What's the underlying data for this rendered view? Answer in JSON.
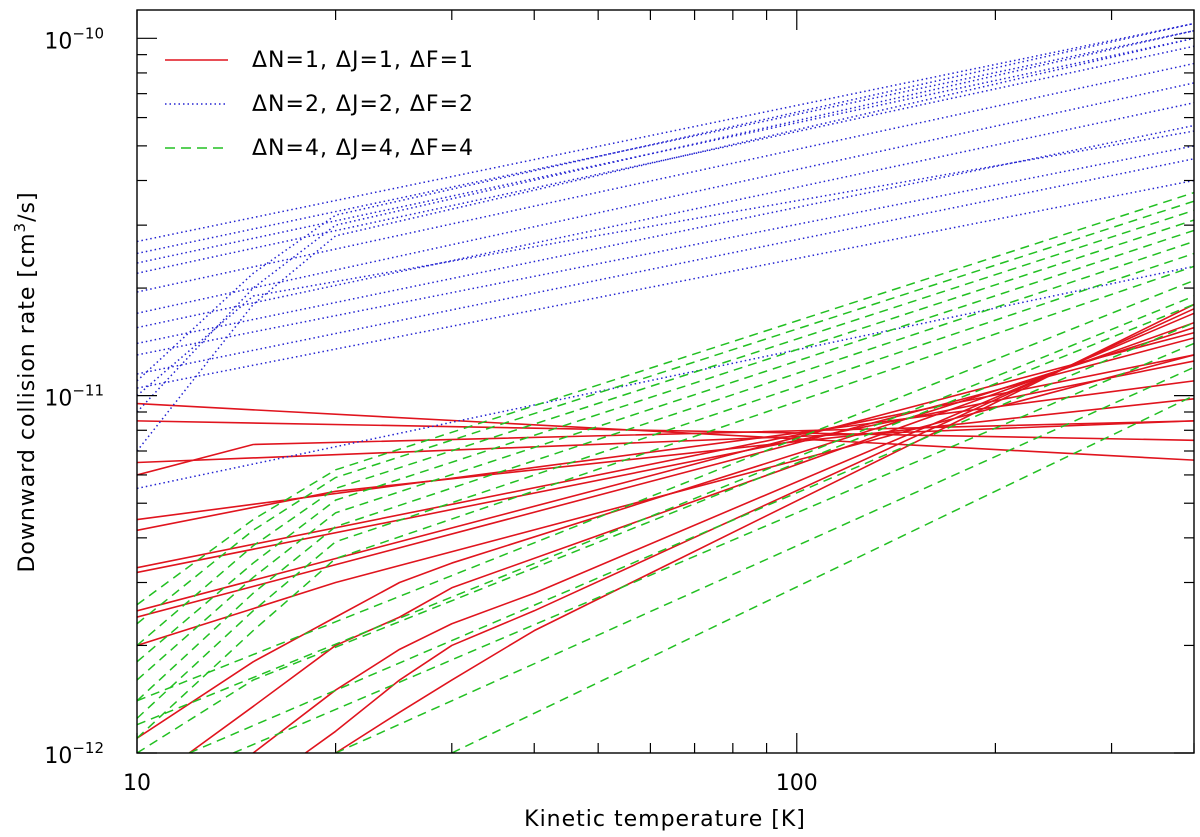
{
  "chart_data": {
    "type": "line",
    "title": "",
    "xlabel": "Kinetic temperature [K]",
    "ylabel_parts": {
      "prefix": "Downward collision rate [cm",
      "sup": "3",
      "suffix": "/s]"
    },
    "xscale": "log",
    "yscale": "log",
    "xlim": [
      10,
      400
    ],
    "ylim": [
      1e-12,
      1.2e-10
    ],
    "x_ticks": [
      {
        "value": 10,
        "label": "10"
      },
      {
        "value": 100,
        "label": "100"
      }
    ],
    "y_ticks": [
      {
        "value": 1e-12,
        "base": "10",
        "exp": "−12"
      },
      {
        "value": 1e-11,
        "base": "10",
        "exp": "−11"
      },
      {
        "value": 1e-10,
        "base": "10",
        "exp": "−10"
      }
    ],
    "grid": false,
    "legend_position": "top-left",
    "groups": [
      {
        "id": "dn1",
        "legend": "ΔN=1, ΔJ=1, ΔF=1",
        "color": "#e0141e",
        "style": "solid",
        "series": [
          {
            "x": [
              10,
              400
            ],
            "y": [
              9.5e-12,
              6.6e-12
            ]
          },
          {
            "x": [
              10,
              400
            ],
            "y": [
              8.5e-12,
              7.5e-12
            ]
          },
          {
            "x": [
              10,
              15,
              400
            ],
            "y": [
              6e-12,
              7.3e-12,
              8.5e-12
            ]
          },
          {
            "x": [
              10,
              400
            ],
            "y": [
              6.5e-12,
              8.5e-12
            ]
          },
          {
            "x": [
              10,
              20,
              400
            ],
            "y": [
              4.2e-12,
              5.4e-12,
              9.8e-12
            ]
          },
          {
            "x": [
              10,
              400
            ],
            "y": [
              4.5e-12,
              1.1e-11
            ]
          },
          {
            "x": [
              10,
              400
            ],
            "y": [
              3.2e-12,
              1.25e-11
            ]
          },
          {
            "x": [
              10,
              400
            ],
            "y": [
              3.3e-12,
              1.3e-11
            ]
          },
          {
            "x": [
              10,
              400
            ],
            "y": [
              2.4e-12,
              1.45e-11
            ]
          },
          {
            "x": [
              10,
              400
            ],
            "y": [
              2.5e-12,
              1.5e-11
            ]
          },
          {
            "x": [
              10,
              20,
              400
            ],
            "y": [
              2e-12,
              3e-12,
              1.3e-11
            ]
          },
          {
            "x": [
              10,
              15,
              20,
              25,
              30,
              400
            ],
            "y": [
              1.1e-12,
              1.8e-12,
              2.4e-12,
              3e-12,
              3.4e-12,
              1.55e-11
            ]
          },
          {
            "x": [
              12,
              15,
              20,
              25,
              30,
              400
            ],
            "y": [
              1e-12,
              1.35e-12,
              2e-12,
              2.4e-12,
              2.9e-12,
              1.6e-11
            ]
          },
          {
            "x": [
              15,
              20,
              25,
              30,
              40,
              400
            ],
            "y": [
              1e-12,
              1.5e-12,
              1.95e-12,
              2.3e-12,
              2.8e-12,
              1.7e-11
            ]
          },
          {
            "x": [
              18,
              20,
              25,
              30,
              40,
              400
            ],
            "y": [
              1e-12,
              1.15e-12,
              1.6e-12,
              2e-12,
              2.5e-12,
              1.75e-11
            ]
          },
          {
            "x": [
              20,
              25,
              30,
              40,
              400
            ],
            "y": [
              1e-12,
              1.3e-12,
              1.6e-12,
              2.2e-12,
              1.8e-11
            ]
          }
        ]
      },
      {
        "id": "dn2",
        "legend": "ΔN=2, ΔJ=2, ΔF=2",
        "color": "#2323d2",
        "style": "dotted",
        "series": [
          {
            "x": [
              10,
              400
            ],
            "y": [
              2.7e-11,
              1.1e-10
            ]
          },
          {
            "x": [
              10,
              400
            ],
            "y": [
              2.5e-11,
              1.05e-10
            ]
          },
          {
            "x": [
              10,
              400
            ],
            "y": [
              2.35e-11,
              1e-10
            ]
          },
          {
            "x": [
              10,
              400
            ],
            "y": [
              2.2e-11,
              9.5e-11
            ]
          },
          {
            "x": [
              10,
              400
            ],
            "y": [
              1.95e-11,
              8.5e-11
            ]
          },
          {
            "x": [
              10,
              400
            ],
            "y": [
              1.7e-11,
              7.5e-11
            ]
          },
          {
            "x": [
              10,
              400
            ],
            "y": [
              1.55e-11,
              6.6e-11
            ]
          },
          {
            "x": [
              10,
              400
            ],
            "y": [
              1.4e-11,
              5.7e-11
            ]
          },
          {
            "x": [
              10,
              400
            ],
            "y": [
              1.3e-11,
              5e-11
            ]
          },
          {
            "x": [
              10,
              400
            ],
            "y": [
              1.15e-11,
              4.6e-11
            ]
          },
          {
            "x": [
              10,
              400
            ],
            "y": [
              1.05e-11,
              4e-11
            ]
          },
          {
            "x": [
              10,
              15,
              400
            ],
            "y": [
              1e-11,
              1.9e-11,
              5.5e-11
            ]
          },
          {
            "x": [
              10,
              15,
              20,
              400
            ],
            "y": [
              7e-12,
              1.8e-11,
              2.8e-11,
              1e-10
            ]
          },
          {
            "x": [
              10,
              15,
              20,
              400
            ],
            "y": [
              9e-12,
              2e-11,
              3e-11,
              1.05e-10
            ]
          },
          {
            "x": [
              10,
              15,
              20,
              400
            ],
            "y": [
              1.1e-11,
              2.2e-11,
              3.2e-11,
              1.1e-10
            ]
          },
          {
            "x": [
              10,
              400
            ],
            "y": [
              5.5e-12,
              2.3e-11
            ]
          }
        ]
      },
      {
        "id": "dn4",
        "legend": "ΔN=4, ΔJ=4, ΔF=4",
        "color": "#22c022",
        "style": "dashed",
        "series": [
          {
            "x": [
              10,
              15,
              20,
              400
            ],
            "y": [
              2.6e-12,
              4.5e-12,
              6.2e-12,
              3.7e-11
            ]
          },
          {
            "x": [
              10,
              15,
              20,
              400
            ],
            "y": [
              2.3e-12,
              4.2e-12,
              5.9e-12,
              3.5e-11
            ]
          },
          {
            "x": [
              10,
              15,
              20,
              400
            ],
            "y": [
              2e-12,
              3.8e-12,
              5.5e-12,
              3.3e-11
            ]
          },
          {
            "x": [
              10,
              15,
              20,
              400
            ],
            "y": [
              1.8e-12,
              3.4e-12,
              5.1e-12,
              3.1e-11
            ]
          },
          {
            "x": [
              10,
              15,
              20,
              400
            ],
            "y": [
              1.6e-12,
              3.1e-12,
              4.7e-12,
              2.9e-11
            ]
          },
          {
            "x": [
              10,
              15,
              20,
              400
            ],
            "y": [
              1.4e-12,
              2.8e-12,
              4.3e-12,
              2.7e-11
            ]
          },
          {
            "x": [
              10,
              15,
              20,
              400
            ],
            "y": [
              1.25e-12,
              2.5e-12,
              3.9e-12,
              2.5e-11
            ]
          },
          {
            "x": [
              10,
              15,
              20,
              400
            ],
            "y": [
              1.1e-12,
              2.2e-12,
              3.5e-12,
              2.3e-11
            ]
          },
          {
            "x": [
              10,
              400
            ],
            "y": [
              1.4e-12,
              2.1e-11
            ]
          },
          {
            "x": [
              10,
              400
            ],
            "y": [
              1.2e-12,
              1.9e-11
            ]
          },
          {
            "x": [
              10,
              15,
              400
            ],
            "y": [
              1e-12,
              1.6e-12,
              1.8e-11
            ]
          },
          {
            "x": [
              12,
              400
            ],
            "y": [
              1e-12,
              1.6e-11
            ]
          },
          {
            "x": [
              14,
              400
            ],
            "y": [
              1e-12,
              1.4e-11
            ]
          },
          {
            "x": [
              20,
              400
            ],
            "y": [
              1e-12,
              1.2e-11
            ]
          },
          {
            "x": [
              30,
              400
            ],
            "y": [
              1e-12,
              1e-11
            ]
          }
        ]
      }
    ]
  }
}
